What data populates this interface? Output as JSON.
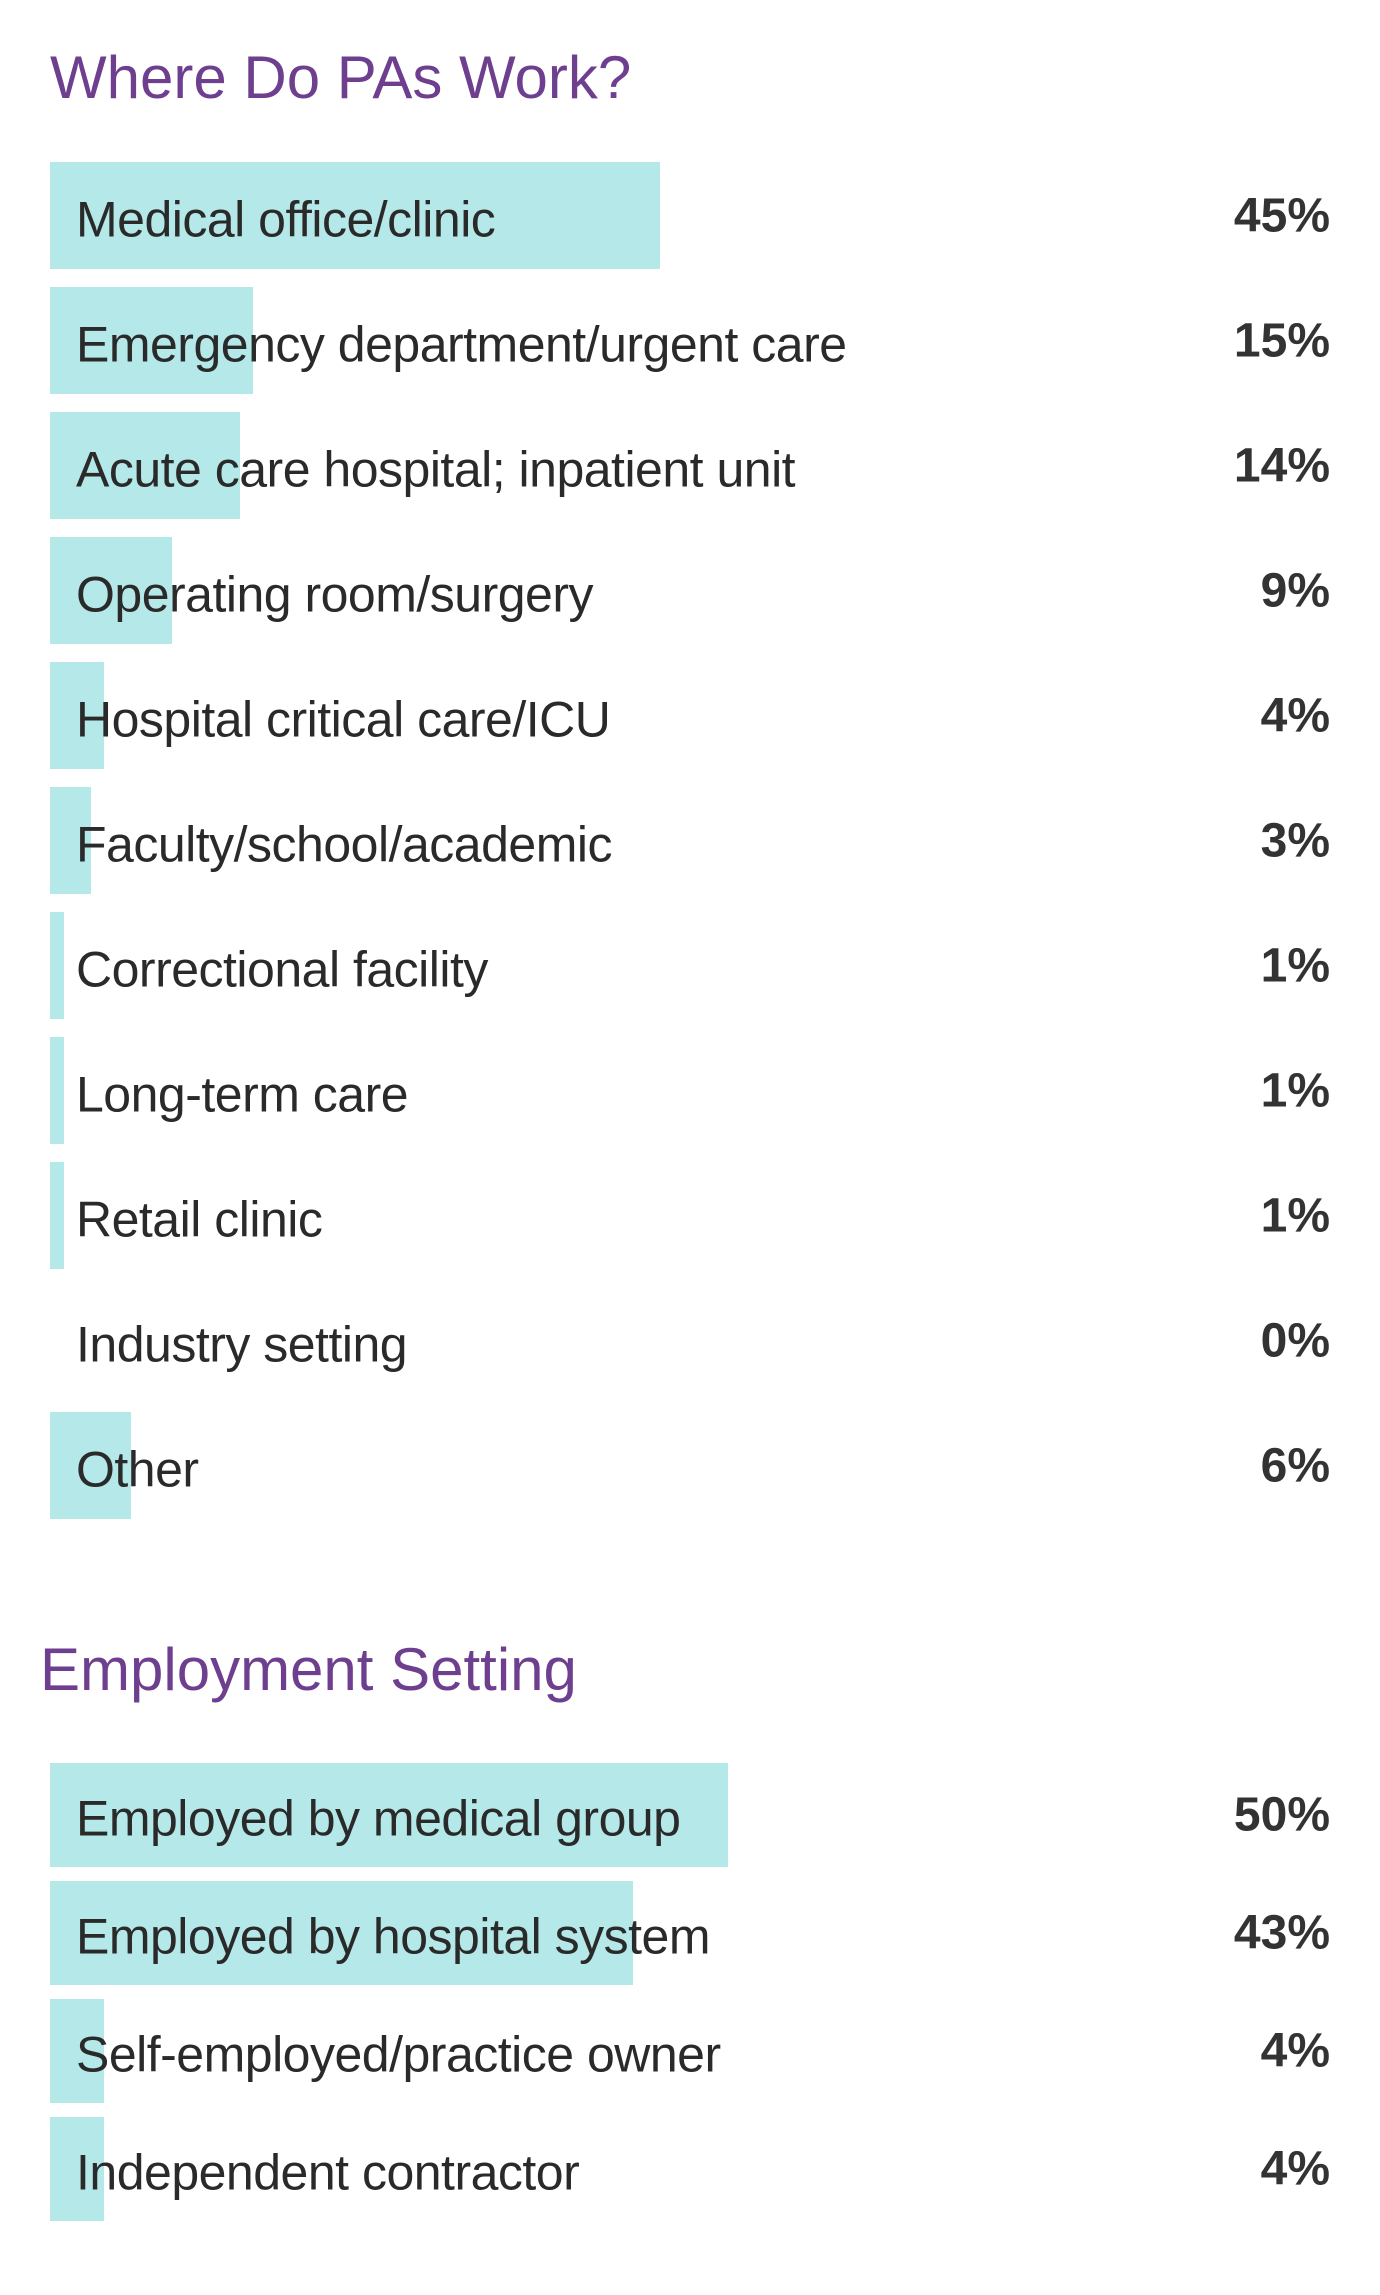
{
  "colors": {
    "title": "#6e3f8f",
    "bar": "#b5e8e8",
    "label": "#2a2a2a",
    "value": "#333333"
  },
  "chart_data": [
    {
      "type": "bar",
      "orientation": "horizontal",
      "title": "Where Do PAs Work?",
      "categories": [
        "Medical office/clinic",
        "Emergency department/urgent care",
        "Acute care hospital; inpatient unit",
        "Operating room/surgery",
        "Hospital critical care/ICU",
        "Faculty/school/academic",
        "Correctional facility",
        "Long-term care",
        "Retail clinic",
        "Industry setting",
        "Other"
      ],
      "values": [
        45,
        15,
        14,
        9,
        4,
        3,
        1,
        1,
        1,
        0,
        6
      ],
      "value_labels": [
        "45%",
        "15%",
        "14%",
        "9%",
        "4%",
        "3%",
        "1%",
        "1%",
        "1%",
        "0%",
        "6%"
      ],
      "xlim": [
        0,
        100
      ]
    },
    {
      "type": "bar",
      "orientation": "horizontal",
      "title": "Employment Setting",
      "categories": [
        "Employed by medical group",
        "Employed by hospital system",
        "Self-employed/practice owner",
        "Independent contractor"
      ],
      "values": [
        50,
        43,
        4,
        4
      ],
      "value_labels": [
        "50%",
        "43%",
        "4%",
        "4%"
      ],
      "xlim": [
        0,
        100
      ]
    }
  ]
}
